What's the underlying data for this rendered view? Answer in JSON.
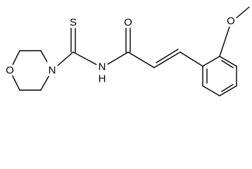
{
  "atom_labels": [
    "S",
    "N",
    "H",
    "O",
    "O",
    "N",
    "O"
  ]
}
